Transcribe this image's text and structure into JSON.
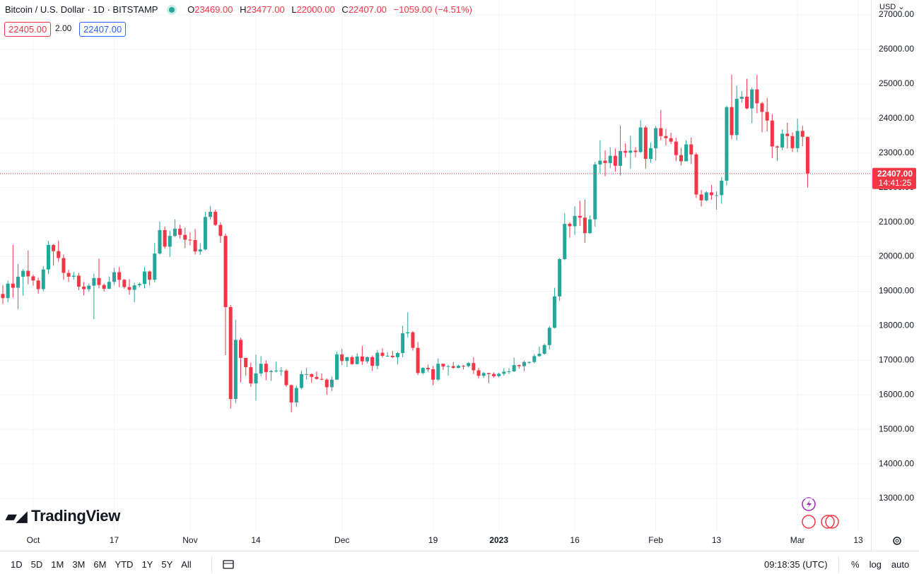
{
  "header": {
    "symbol": "Bitcoin / U.S. Dollar · 1D · BITSTAMP",
    "quote": [
      {
        "key": "O",
        "value": "23469.00"
      },
      {
        "key": "H",
        "value": "23477.00"
      },
      {
        "key": "L",
        "value": "22000.00"
      },
      {
        "key": "C",
        "value": "22407.00"
      }
    ],
    "change": "−1059.00 (−4.51%)",
    "bid": "22405.00",
    "spread": "2.00",
    "ask": "22407.00",
    "currency": "USD"
  },
  "logo": "TradingView",
  "toolbar": {
    "ranges": [
      "1D",
      "5D",
      "1M",
      "3M",
      "6M",
      "YTD",
      "1Y",
      "5Y",
      "All"
    ],
    "clock": "09:18:35 (UTC)",
    "options": [
      "%",
      "log",
      "auto"
    ]
  },
  "chart_data": {
    "type": "candlestick",
    "up_color": "#26a69a",
    "down_color": "#f23645",
    "grid": true,
    "ylim": [
      12060,
      27430
    ],
    "yticks": [
      {
        "value": 13000,
        "label": "13000.00"
      },
      {
        "value": 14000,
        "label": "14000.00"
      },
      {
        "value": 15000,
        "label": "15000.00"
      },
      {
        "value": 16000,
        "label": "16000.00"
      },
      {
        "value": 17000,
        "label": "17000.00"
      },
      {
        "value": 18000,
        "label": "18000.00"
      },
      {
        "value": 19000,
        "label": "19000.00"
      },
      {
        "value": 20000,
        "label": "20000.00"
      },
      {
        "value": 21000,
        "label": "21000.00"
      },
      {
        "value": 22000,
        "label": "22000.00"
      },
      {
        "value": 23000,
        "label": "23000.00"
      },
      {
        "value": 24000,
        "label": "24000.00"
      },
      {
        "value": 25000,
        "label": "25000.00"
      },
      {
        "value": 26000,
        "label": "26000.00"
      },
      {
        "value": 27000,
        "label": "27000.00"
      }
    ],
    "last_price": {
      "value": 22407,
      "label": "22407.00",
      "countdown": "14:41:25"
    },
    "categories": [
      null,
      null,
      null,
      null,
      null,
      null,
      "Oct",
      null,
      null,
      null,
      null,
      null,
      null,
      null,
      null,
      null,
      null,
      null,
      null,
      null,
      null,
      null,
      "17",
      null,
      null,
      null,
      null,
      null,
      null,
      null,
      null,
      null,
      null,
      null,
      null,
      null,
      null,
      "Nov",
      null,
      null,
      null,
      null,
      null,
      null,
      null,
      null,
      null,
      null,
      null,
      null,
      "14",
      null,
      null,
      null,
      null,
      null,
      null,
      null,
      null,
      null,
      null,
      null,
      null,
      null,
      null,
      null,
      null,
      "Dec",
      null,
      null,
      null,
      null,
      null,
      null,
      null,
      null,
      null,
      null,
      null,
      null,
      null,
      null,
      null,
      null,
      null,
      "19",
      null,
      null,
      null,
      null,
      null,
      null,
      null,
      null,
      null,
      null,
      null,
      null,
      "2023",
      null,
      null,
      null,
      null,
      null,
      null,
      null,
      null,
      null,
      null,
      null,
      null,
      null,
      null,
      "16",
      null,
      null,
      null,
      null,
      null,
      null,
      null,
      null,
      null,
      null,
      null,
      null,
      null,
      null,
      null,
      "Feb",
      null,
      null,
      null,
      null,
      null,
      null,
      null,
      null,
      null,
      null,
      null,
      "13",
      null,
      null,
      null,
      null,
      null,
      null,
      null,
      null,
      null,
      null,
      null,
      null,
      null,
      null,
      null,
      "Mar",
      null,
      null,
      null,
      null,
      null,
      null,
      null,
      null,
      null,
      null,
      null,
      "13"
    ],
    "open": [
      18920,
      18800,
      19220,
      19100,
      19420,
      19590,
      19430,
      19310,
      19060,
      19630,
      20340,
      20160,
      19960,
      19530,
      19420,
      19450,
      19130,
      19060,
      19160,
      19380,
      19180,
      19070,
      19270,
      19550,
      19330,
      19120,
      19040,
      19170,
      19210,
      19570,
      19330,
      20090,
      20770,
      20290,
      20600,
      20810,
      20630,
      20490,
      20480,
      20150,
      20210,
      21150,
      21300,
      20920,
      20600,
      18540,
      15880,
      17590,
      17070,
      16800,
      16330,
      16620,
      16900,
      16660,
      16690,
      16700,
      16700,
      16280,
      15780,
      16200,
      16600,
      16600,
      16520,
      16460,
      16440,
      16220,
      16440,
      17170,
      16980,
      17090,
      16890,
      17110,
      16970,
      17090,
      16840,
      17220,
      17130,
      17130,
      17090,
      17210,
      17780,
      17810,
      17360,
      16630,
      16780,
      16740,
      16440,
      16900,
      16820,
      16830,
      16780,
      16840,
      16830,
      16920,
      16710,
      16550,
      16630,
      16600,
      16540,
      16610,
      16670,
      16680,
      16860,
      16830,
      16950,
      16950,
      17120,
      17190,
      17440,
      17940,
      18850,
      19930,
      20950,
      20880,
      21180,
      21130,
      20680,
      21080,
      22670,
      22780,
      22710,
      22920,
      22630,
      23060,
      23010,
      23070,
      23030,
      23740,
      22830,
      23140,
      23720,
      23490,
      23430,
      23330,
      22940,
      22760,
      23250,
      22960,
      21800,
      21630,
      21860,
      21780,
      21780,
      22200,
      24330,
      23520,
      24570,
      24630,
      24290,
      24840,
      24440,
      24190,
      23940,
      23190,
      23160,
      23560,
      23490,
      23140,
      23640,
      23469,
      null,
      null,
      null,
      null,
      null,
      null,
      null,
      null,
      null,
      null
    ],
    "high": [
      19180,
      19310,
      20340,
      19790,
      19640,
      20180,
      19480,
      19390,
      19720,
      20460,
      20360,
      20460,
      20060,
      19620,
      19560,
      19530,
      19270,
      19220,
      19510,
      19950,
      19220,
      19420,
      19680,
      19700,
      19360,
      19350,
      19250,
      19260,
      19700,
      19600,
      20400,
      21020,
      20870,
      20750,
      21080,
      20920,
      20840,
      20700,
      20800,
      20390,
      21300,
      21470,
      21360,
      20990,
      20670,
      18600,
      18170,
      17650,
      17070,
      16930,
      17160,
      17120,
      17000,
      16720,
      16960,
      16800,
      16750,
      16300,
      16270,
      16700,
      16780,
      16620,
      16680,
      16620,
      16480,
      16530,
      17250,
      17330,
      17100,
      17140,
      17200,
      17420,
      17110,
      17140,
      17300,
      17350,
      17230,
      17270,
      17240,
      18000,
      18390,
      17850,
      17530,
      16800,
      16870,
      16830,
      17060,
      16900,
      16870,
      16950,
      16870,
      16860,
      16940,
      17090,
      16780,
      16660,
      16640,
      16650,
      16640,
      16770,
      16770,
      17080,
      16880,
      16990,
      16970,
      17180,
      17400,
      17480,
      17990,
      19100,
      19960,
      21260,
      21000,
      21460,
      21620,
      21650,
      21190,
      22740,
      23370,
      23080,
      23170,
      23130,
      23800,
      23280,
      23500,
      23170,
      23950,
      23790,
      23300,
      23780,
      24250,
      23700,
      23590,
      23440,
      23150,
      23370,
      23450,
      23010,
      21930,
      21900,
      22080,
      21890,
      22310,
      24370,
      25270,
      24950,
      24790,
      25150,
      24900,
      25260,
      24480,
      24600,
      24130,
      23220,
      23680,
      23880,
      23600,
      23990,
      23790,
      23477,
      null,
      null,
      null,
      null,
      null,
      null,
      null,
      null,
      null,
      null
    ],
    "low": [
      18630,
      18680,
      18820,
      18480,
      18870,
      19200,
      19160,
      18930,
      19000,
      19500,
      19740,
      19850,
      19330,
      19270,
      19330,
      19030,
      18880,
      18990,
      18190,
      19080,
      18990,
      19060,
      19180,
      19120,
      19070,
      18900,
      18680,
      19110,
      19080,
      19160,
      19250,
      20060,
      20230,
      20000,
      20560,
      20520,
      20250,
      20330,
      20060,
      20050,
      20180,
      21080,
      20890,
      20400,
      17150,
      15600,
      15760,
      16360,
      16550,
      16230,
      15830,
      16540,
      16420,
      16400,
      16650,
      16550,
      16230,
      15490,
      15650,
      16160,
      16450,
      16350,
      16440,
      16420,
      16000,
      16110,
      16430,
      16860,
      16800,
      16870,
      16880,
      16870,
      16910,
      16690,
      16740,
      17080,
      17100,
      17070,
      16880,
      17090,
      17660,
      17280,
      16570,
      16590,
      16670,
      16280,
      16400,
      16720,
      16560,
      16760,
      16770,
      16730,
      16790,
      16600,
      16470,
      16490,
      16340,
      16500,
      16500,
      16550,
      16600,
      16660,
      16760,
      16690,
      16900,
      16910,
      17100,
      17160,
      17310,
      17920,
      18720,
      19900,
      20550,
      20630,
      20890,
      20400,
      20660,
      20870,
      22420,
      22330,
      22560,
      22460,
      22350,
      22880,
      22540,
      22880,
      23000,
      22550,
      22720,
      22780,
      23370,
      23220,
      23260,
      22760,
      22640,
      22760,
      22680,
      21700,
      21450,
      21600,
      21650,
      21360,
      21530,
      22060,
      23400,
      23370,
      24460,
      24270,
      23860,
      24150,
      23600,
      23630,
      22850,
      22780,
      23080,
      23130,
      23030,
      23030,
      23200,
      22000,
      null,
      null,
      null,
      null,
      null,
      null,
      null,
      null,
      null,
      null
    ],
    "close": [
      18800,
      19220,
      19100,
      19420,
      19590,
      19430,
      19310,
      19060,
      19630,
      20340,
      20160,
      19960,
      19530,
      19420,
      19450,
      19130,
      19060,
      19160,
      19380,
      19180,
      19070,
      19270,
      19550,
      19330,
      19120,
      19040,
      19170,
      19210,
      19570,
      19330,
      20090,
      20770,
      20290,
      20600,
      20810,
      20630,
      20490,
      20480,
      20150,
      20210,
      21150,
      21300,
      20920,
      20600,
      18540,
      15880,
      17590,
      17070,
      16800,
      16330,
      16620,
      16900,
      16660,
      16690,
      16700,
      16700,
      16280,
      15780,
      16200,
      16600,
      16600,
      16520,
      16460,
      16440,
      16220,
      16440,
      17170,
      16980,
      17090,
      16890,
      17110,
      16970,
      17090,
      16840,
      17220,
      17130,
      17130,
      17090,
      17210,
      17780,
      17810,
      17360,
      16630,
      16780,
      16740,
      16440,
      16900,
      16820,
      16830,
      16780,
      16840,
      16830,
      16920,
      16710,
      16550,
      16630,
      16600,
      16540,
      16610,
      16670,
      16680,
      16860,
      16830,
      16950,
      16950,
      17120,
      17190,
      17440,
      17940,
      18850,
      19930,
      20950,
      20880,
      21180,
      21130,
      20680,
      21080,
      22670,
      22780,
      22710,
      22920,
      22630,
      23060,
      23010,
      23070,
      23030,
      23740,
      22830,
      23140,
      23720,
      23490,
      23430,
      23330,
      22940,
      22760,
      23250,
      22960,
      21800,
      21630,
      21860,
      21780,
      21780,
      22200,
      24330,
      23520,
      24570,
      24630,
      24290,
      24840,
      24440,
      24190,
      23940,
      23190,
      23160,
      23560,
      23490,
      23140,
      23640,
      23470,
      22407,
      null,
      null,
      null,
      null,
      null,
      null,
      null,
      null,
      null,
      null
    ]
  }
}
